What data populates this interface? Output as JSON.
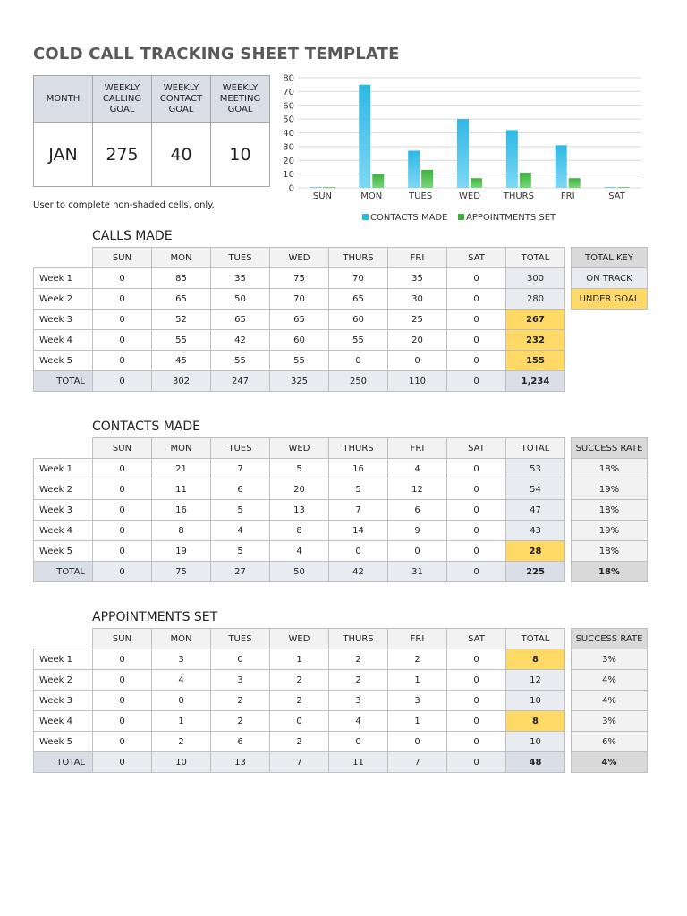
{
  "title": "COLD CALL TRACKING SHEET TEMPLATE",
  "goals": {
    "headers": [
      "MONTH",
      "WEEKLY CALLING GOAL",
      "WEEKLY CONTACT GOAL",
      "WEEKLY MEETING GOAL"
    ],
    "values": [
      "JAN",
      "275",
      "40",
      "10"
    ]
  },
  "note": "User to complete non-shaded cells, only.",
  "colors": {
    "contacts": "#2eb8e6",
    "appointments": "#3cb43c",
    "under_goal": "#ffd966",
    "shaded": "#e8ebf0"
  },
  "chart_data": {
    "type": "bar",
    "categories": [
      "SUN",
      "MON",
      "TUES",
      "WED",
      "THURS",
      "FRI",
      "SAT"
    ],
    "series": [
      {
        "name": "CONTACTS MADE",
        "values": [
          0,
          75,
          27,
          50,
          42,
          31,
          0
        ]
      },
      {
        "name": "APPOINTMENTS SET",
        "values": [
          0,
          10,
          13,
          7,
          11,
          7,
          0
        ]
      }
    ],
    "yticks": [
      "0",
      "10",
      "20",
      "30",
      "40",
      "50",
      "60",
      "70",
      "80"
    ],
    "ylim": [
      0,
      80
    ],
    "legend": "bottom",
    "grid": true
  },
  "days_header": [
    "SUN",
    "MON",
    "TUES",
    "WED",
    "THURS",
    "FRI",
    "SAT",
    "TOTAL"
  ],
  "calls": {
    "title": "CALLS MADE",
    "rows": [
      {
        "label": "Week 1",
        "values": [
          "0",
          "85",
          "35",
          "75",
          "70",
          "35",
          "0"
        ],
        "total": "300"
      },
      {
        "label": "Week 2",
        "values": [
          "0",
          "65",
          "50",
          "70",
          "65",
          "30",
          "0"
        ],
        "total": "280"
      },
      {
        "label": "Week 3",
        "values": [
          "0",
          "52",
          "65",
          "65",
          "60",
          "25",
          "0"
        ],
        "total": "267"
      },
      {
        "label": "Week 4",
        "values": [
          "0",
          "55",
          "42",
          "60",
          "55",
          "20",
          "0"
        ],
        "total": "232"
      },
      {
        "label": "Week 5",
        "values": [
          "0",
          "45",
          "55",
          "55",
          "0",
          "0",
          "0"
        ],
        "total": "155"
      }
    ],
    "total_row": {
      "label": "TOTAL",
      "values": [
        "0",
        "302",
        "247",
        "325",
        "250",
        "110",
        "0"
      ],
      "total": "1,234"
    },
    "key": {
      "header": "TOTAL KEY",
      "on_track": "ON TRACK",
      "under_goal": "UNDER GOAL"
    }
  },
  "contacts": {
    "title": "CONTACTS MADE",
    "rate_header": "SUCCESS RATE",
    "rows": [
      {
        "label": "Week 1",
        "values": [
          "0",
          "21",
          "7",
          "5",
          "16",
          "4",
          "0"
        ],
        "total": "53",
        "rate": "18%"
      },
      {
        "label": "Week 2",
        "values": [
          "0",
          "11",
          "6",
          "20",
          "5",
          "12",
          "0"
        ],
        "total": "54",
        "rate": "19%"
      },
      {
        "label": "Week 3",
        "values": [
          "0",
          "16",
          "5",
          "13",
          "7",
          "6",
          "0"
        ],
        "total": "47",
        "rate": "18%"
      },
      {
        "label": "Week 4",
        "values": [
          "0",
          "8",
          "4",
          "8",
          "14",
          "9",
          "0"
        ],
        "total": "43",
        "rate": "19%"
      },
      {
        "label": "Week 5",
        "values": [
          "0",
          "19",
          "5",
          "4",
          "0",
          "0",
          "0"
        ],
        "total": "28",
        "rate": "18%"
      }
    ],
    "total_row": {
      "label": "TOTAL",
      "values": [
        "0",
        "75",
        "27",
        "50",
        "42",
        "31",
        "0"
      ],
      "total": "225",
      "rate": "18%"
    }
  },
  "appointments": {
    "title": "APPOINTMENTS SET",
    "rate_header": "SUCCESS RATE",
    "rows": [
      {
        "label": "Week 1",
        "values": [
          "0",
          "3",
          "0",
          "1",
          "2",
          "2",
          "0"
        ],
        "total": "8",
        "rate": "3%"
      },
      {
        "label": "Week 2",
        "values": [
          "0",
          "4",
          "3",
          "2",
          "2",
          "1",
          "0"
        ],
        "total": "12",
        "rate": "4%"
      },
      {
        "label": "Week 3",
        "values": [
          "0",
          "0",
          "2",
          "2",
          "3",
          "3",
          "0"
        ],
        "total": "10",
        "rate": "4%"
      },
      {
        "label": "Week 4",
        "values": [
          "0",
          "1",
          "2",
          "0",
          "4",
          "1",
          "0"
        ],
        "total": "8",
        "rate": "3%"
      },
      {
        "label": "Week 5",
        "values": [
          "0",
          "2",
          "6",
          "2",
          "0",
          "0",
          "0"
        ],
        "total": "10",
        "rate": "6%"
      }
    ],
    "total_row": {
      "label": "TOTAL",
      "values": [
        "0",
        "10",
        "13",
        "7",
        "11",
        "7",
        "0"
      ],
      "total": "48",
      "rate": "4%"
    }
  }
}
